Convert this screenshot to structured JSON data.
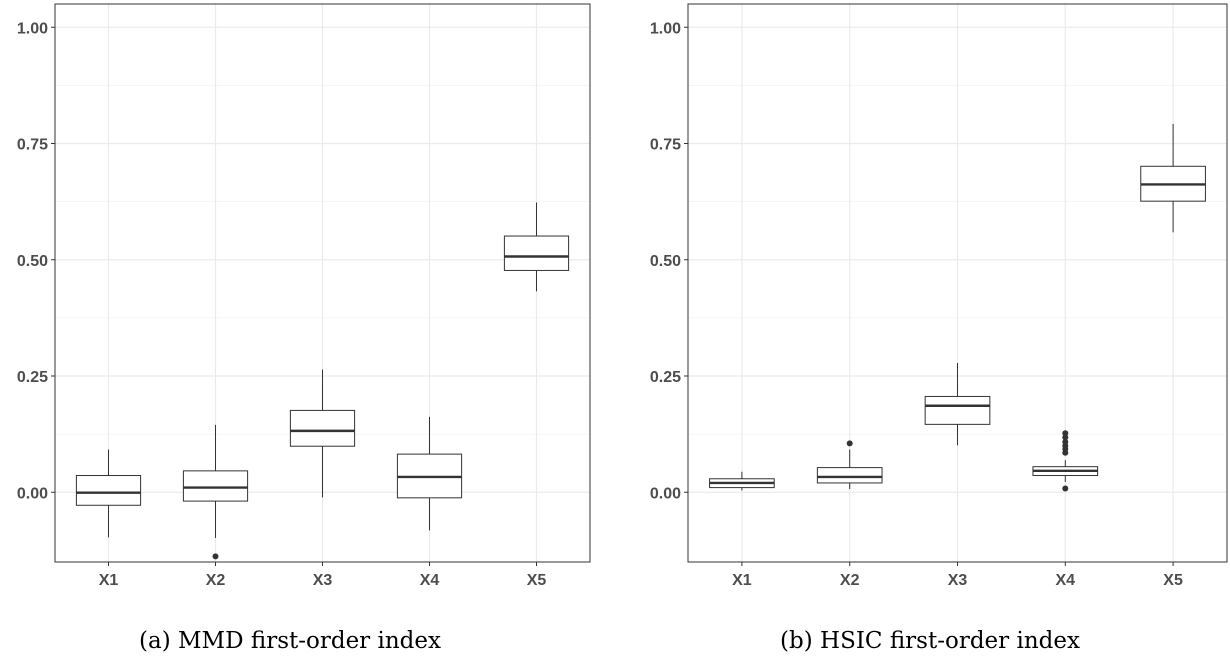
{
  "chart_data": [
    {
      "type": "boxplot",
      "caption": "(a) MMD first-order index",
      "categories": [
        "X1",
        "X2",
        "X3",
        "X4",
        "X5"
      ],
      "ylim": [
        -0.15,
        1.05
      ],
      "yticks": [
        0.0,
        0.25,
        0.5,
        0.75,
        1.0
      ],
      "ytick_labels": [
        "0.00",
        "0.25",
        "0.50",
        "0.75",
        "1.00"
      ],
      "grid": true,
      "boxes": [
        {
          "category": "X1",
          "whisker_low": -0.097,
          "q1": -0.028,
          "median": -0.001,
          "q3": 0.036,
          "whisker_high": 0.092,
          "outliers": []
        },
        {
          "category": "X2",
          "whisker_low": -0.098,
          "q1": -0.019,
          "median": 0.01,
          "q3": 0.046,
          "whisker_high": 0.145,
          "outliers": [
            -0.138
          ]
        },
        {
          "category": "X3",
          "whisker_low": -0.011,
          "q1": 0.099,
          "median": 0.132,
          "q3": 0.176,
          "whisker_high": 0.264,
          "outliers": []
        },
        {
          "category": "X4",
          "whisker_low": -0.082,
          "q1": -0.012,
          "median": 0.033,
          "q3": 0.082,
          "whisker_high": 0.162,
          "outliers": []
        },
        {
          "category": "X5",
          "whisker_low": 0.432,
          "q1": 0.477,
          "median": 0.507,
          "q3": 0.551,
          "whisker_high": 0.623,
          "outliers": []
        }
      ]
    },
    {
      "type": "boxplot",
      "caption": "(b) HSIC first-order index",
      "categories": [
        "X1",
        "X2",
        "X3",
        "X4",
        "X5"
      ],
      "ylim": [
        -0.15,
        1.05
      ],
      "yticks": [
        0.0,
        0.25,
        0.5,
        0.75,
        1.0
      ],
      "ytick_labels": [
        "0.00",
        "0.25",
        "0.50",
        "0.75",
        "1.00"
      ],
      "grid": true,
      "boxes": [
        {
          "category": "X1",
          "whisker_low": 0.004,
          "q1": 0.01,
          "median": 0.02,
          "q3": 0.029,
          "whisker_high": 0.044,
          "outliers": []
        },
        {
          "category": "X2",
          "whisker_low": 0.007,
          "q1": 0.02,
          "median": 0.033,
          "q3": 0.053,
          "whisker_high": 0.092,
          "outliers": [
            0.105
          ]
        },
        {
          "category": "X3",
          "whisker_low": 0.101,
          "q1": 0.146,
          "median": 0.186,
          "q3": 0.206,
          "whisker_high": 0.278,
          "outliers": []
        },
        {
          "category": "X4",
          "whisker_low": 0.022,
          "q1": 0.036,
          "median": 0.046,
          "q3": 0.055,
          "whisker_high": 0.069,
          "outliers": [
            0.008,
            0.085,
            0.093,
            0.1,
            0.108,
            0.118,
            0.127
          ]
        },
        {
          "category": "X5",
          "whisker_low": 0.559,
          "q1": 0.626,
          "median": 0.662,
          "q3": 0.701,
          "whisker_high": 0.792,
          "outliers": []
        }
      ]
    }
  ]
}
